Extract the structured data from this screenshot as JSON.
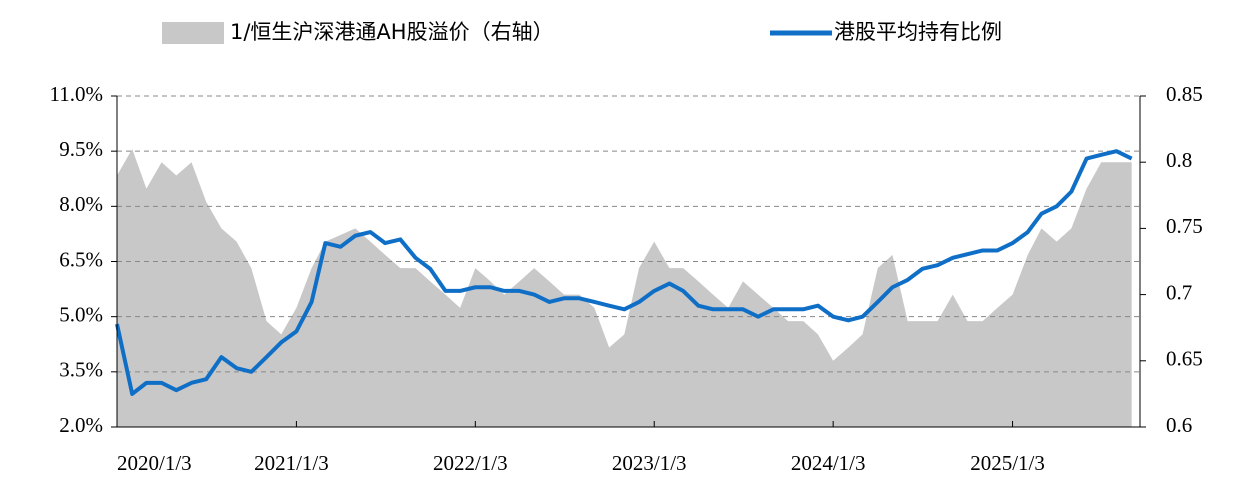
{
  "chart_data": {
    "type": "line",
    "legend": "top",
    "x": [
      "2020/1/3",
      "2020/2/3",
      "2020/3/3",
      "2020/4/3",
      "2020/5/3",
      "2020/6/3",
      "2020/7/3",
      "2020/8/3",
      "2020/9/3",
      "2020/10/3",
      "2020/11/3",
      "2020/12/3",
      "2021/1/3",
      "2021/2/3",
      "2021/3/3",
      "2021/4/3",
      "2021/5/3",
      "2021/6/3",
      "2021/7/3",
      "2021/8/3",
      "2021/9/3",
      "2021/10/3",
      "2021/11/3",
      "2021/12/3",
      "2022/1/3",
      "2022/2/3",
      "2022/3/3",
      "2022/4/3",
      "2022/5/3",
      "2022/6/3",
      "2022/7/3",
      "2022/8/3",
      "2022/9/3",
      "2022/10/3",
      "2022/11/3",
      "2022/12/3",
      "2023/1/3",
      "2023/2/3",
      "2023/3/3",
      "2023/4/3",
      "2023/5/3",
      "2023/6/3",
      "2023/7/3",
      "2023/8/3",
      "2023/9/3",
      "2023/10/3",
      "2023/11/3",
      "2023/12/3",
      "2024/1/3",
      "2024/2/3",
      "2024/3/3",
      "2024/4/3",
      "2024/5/3",
      "2024/6/3",
      "2024/7/3",
      "2024/8/3",
      "2024/9/3",
      "2024/10/3",
      "2024/11/3",
      "2024/12/3",
      "2025/1/3",
      "2025/2/3",
      "2025/3/3",
      "2025/4/3",
      "2025/5/3",
      "2025/6/3",
      "2025/7/3",
      "2025/8/3",
      "2025/9/3"
    ],
    "xlim": [
      "2020/1/3",
      "2025/9/20"
    ],
    "xticks": [
      "2020/1/3",
      "2021/1/3",
      "2022/1/3",
      "2023/1/3",
      "2024/1/3",
      "2025/1/3"
    ],
    "ylim": [
      2,
      11
    ],
    "yticks": [
      {
        "value": 2,
        "label": "2.0%"
      },
      {
        "value": 3.5,
        "label": "3.5%"
      },
      {
        "value": 5,
        "label": "5.0%"
      },
      {
        "value": 6.5,
        "label": "6.5%"
      },
      {
        "value": 8,
        "label": "8.0%"
      },
      {
        "value": 9.5,
        "label": "9.5%"
      },
      {
        "value": 11,
        "label": "11.0%"
      }
    ],
    "y2lim": [
      0.6,
      0.85
    ],
    "y2ticks": [
      0.6,
      0.65,
      0.7,
      0.75,
      0.8,
      0.85
    ],
    "grid": true,
    "series": [
      {
        "name": "1/恒生沪深港通AH股溢价（右轴）",
        "type": "area",
        "axis": "y2",
        "color": "#c9c8c9",
        "values": [
          0.79,
          0.81,
          0.78,
          0.8,
          0.79,
          0.8,
          0.77,
          0.75,
          0.74,
          0.72,
          0.68,
          0.67,
          0.69,
          0.72,
          0.74,
          0.745,
          0.75,
          0.74,
          0.73,
          0.72,
          0.72,
          0.71,
          0.7,
          0.69,
          0.72,
          0.71,
          0.7,
          0.71,
          0.72,
          0.71,
          0.7,
          0.7,
          0.69,
          0.66,
          0.67,
          0.72,
          0.74,
          0.72,
          0.72,
          0.71,
          0.7,
          0.69,
          0.71,
          0.7,
          0.69,
          0.68,
          0.68,
          0.67,
          0.65,
          0.66,
          0.67,
          0.72,
          0.73,
          0.68,
          0.68,
          0.68,
          0.7,
          0.68,
          0.68,
          0.69,
          0.7,
          0.73,
          0.75,
          0.74,
          0.75,
          0.78,
          0.8,
          0.8,
          0.8
        ]
      },
      {
        "name": "港股平均持有比例",
        "type": "line",
        "color": "#0f6fc6",
        "values": [
          4.8,
          2.9,
          3.2,
          3.2,
          3.0,
          3.2,
          3.3,
          3.9,
          3.6,
          3.5,
          3.9,
          4.3,
          4.6,
          5.4,
          7.0,
          6.9,
          7.2,
          7.3,
          7.0,
          7.1,
          6.6,
          6.3,
          5.7,
          5.7,
          5.8,
          5.8,
          5.7,
          5.7,
          5.6,
          5.4,
          5.5,
          5.5,
          5.4,
          5.3,
          5.2,
          5.4,
          5.7,
          5.9,
          5.7,
          5.3,
          5.2,
          5.2,
          5.2,
          5.0,
          5.2,
          5.2,
          5.2,
          5.3,
          5.0,
          4.9,
          5.0,
          5.4,
          5.8,
          6.0,
          6.3,
          6.4,
          6.6,
          6.7,
          6.8,
          6.8,
          7.0,
          7.3,
          7.8,
          8.0,
          8.4,
          9.3,
          9.4,
          9.5,
          9.3
        ]
      }
    ]
  }
}
